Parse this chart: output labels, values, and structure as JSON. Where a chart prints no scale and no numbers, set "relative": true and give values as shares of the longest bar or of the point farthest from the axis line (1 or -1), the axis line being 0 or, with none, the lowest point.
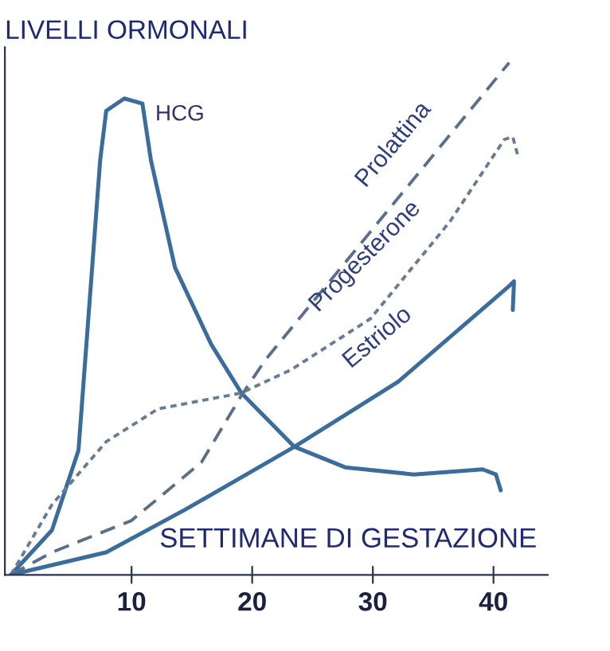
{
  "chart_data": {
    "type": "line",
    "relative": true,
    "xlabel": "SETTIMANE DI GESTAZIONE",
    "ylabel": "LIVELLI ORMONALI",
    "xlim": [
      -0.5,
      44.5
    ],
    "xticks": [
      10,
      20,
      30,
      40
    ],
    "grid": false,
    "legend": false,
    "marker": "none",
    "series": [
      {
        "name": "HCG",
        "color": "#3a6d9b",
        "line_style": "solid",
        "x": [
          0,
          3.4,
          5.6,
          7.4,
          7.9,
          9.4,
          10.9,
          11.6,
          13.6,
          16.6,
          19.1,
          23.5,
          27.7,
          33.4,
          39.1,
          40.2,
          40.6
        ],
        "values": [
          0,
          0.087,
          0.243,
          0.81,
          0.906,
          0.93,
          0.92,
          0.81,
          0.6,
          0.45,
          0.355,
          0.25,
          0.21,
          0.196,
          0.206,
          0.196,
          0.165
        ]
      },
      {
        "name": "Prolattina",
        "color": "#5b7088",
        "line_style": "dashed",
        "x": [
          0,
          3.4,
          10,
          15.8,
          19.1,
          21.1,
          41.3
        ],
        "values": [
          0,
          0.044,
          0.106,
          0.22,
          0.35,
          0.42,
          1.0
        ]
      },
      {
        "name": "Progesterone",
        "color": "#687d93",
        "line_style": "dotted",
        "x": [
          0,
          3.4,
          7.9,
          12.2,
          19.1,
          23.2,
          29.8,
          36.4,
          40.9,
          41.6,
          42
        ],
        "values": [
          0,
          0.137,
          0.26,
          0.324,
          0.355,
          0.4,
          0.5,
          0.69,
          0.85,
          0.855,
          0.82
        ]
      },
      {
        "name": "Estriolo",
        "color": "#3a6d9b",
        "line_style": "solid",
        "x": [
          0,
          7.9,
          14.5,
          23.5,
          32.1,
          41.3,
          41.7,
          41.6
        ],
        "values": [
          0,
          0.044,
          0.128,
          0.25,
          0.377,
          0.564,
          0.573,
          0.517
        ]
      }
    ]
  }
}
